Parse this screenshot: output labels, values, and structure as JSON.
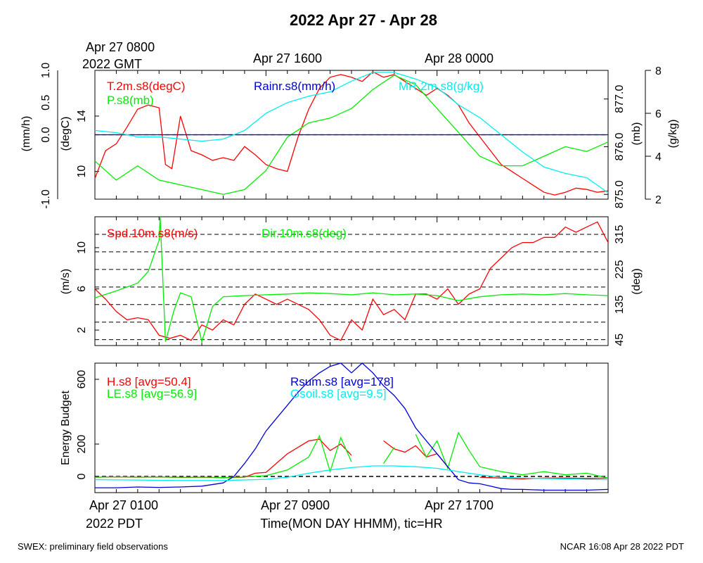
{
  "title": "2022 Apr 27 - Apr 28",
  "top_axis": {
    "gmt_first_line1": "Apr 27 0800",
    "gmt_first_line2": "2022 GMT",
    "gmt_labels": [
      "Apr 27 1600",
      "Apr 28 0000"
    ]
  },
  "bottom_axis": {
    "labels": [
      "Apr 27 0100",
      "Apr 27 0900",
      "Apr 27 1700"
    ],
    "year_label": "2022 PDT",
    "xlabel": "Time(MON DAY HHMM), tic=HR"
  },
  "footer": {
    "left": "SWEX: preliminary field observations",
    "right": "NCAR 16:08 Apr 28 2022 PDT"
  },
  "colors": {
    "red": "#ff0000",
    "green": "#00ee00",
    "blue": "#0000dd",
    "cyan": "#00eeee",
    "black": "#000000"
  },
  "chart_data": [
    {
      "type": "line",
      "panel": "meteorology",
      "x_range_hours": [
        0,
        24
      ],
      "axes": {
        "left_outer": {
          "label": "(mm/h)",
          "ticks": [
            "-1.0",
            "0.0",
            "0.5",
            "1.0"
          ],
          "range": [
            -1,
            1
          ]
        },
        "left_inner": {
          "label": "(degC)",
          "ticks": [
            "10",
            "14"
          ],
          "range": [
            8,
            17.3
          ]
        },
        "right_inner": {
          "label": "(mb)",
          "ticks": [
            "875.0",
            "876.0",
            "877.0"
          ],
          "range": [
            874.9,
            877.6
          ]
        },
        "right_outer": {
          "label": "(g/kg)",
          "ticks": [
            "2",
            "4",
            "6",
            "8"
          ],
          "range": [
            2,
            8
          ]
        }
      },
      "legend": [
        "T.2m.s8(degC)",
        "P.s8(mb)",
        "Rainr.s8(mm/h)",
        "MR.2m.s8(g/kg)"
      ],
      "series": [
        {
          "name": "T.2m.s8(degC)",
          "axis": "left_inner",
          "color": "red",
          "x": [
            0,
            0.5,
            1,
            1.5,
            2,
            2.5,
            3,
            3.3,
            3.6,
            4,
            4.5,
            5,
            5.5,
            6,
            6.5,
            7,
            7.5,
            8,
            8.5,
            9,
            9.5,
            10,
            10.5,
            11,
            11.5,
            12,
            12.5,
            13,
            13.5,
            14,
            14.5,
            15,
            15.5,
            16,
            16.5,
            17,
            17.5,
            18,
            18.5,
            19,
            19.5,
            20,
            20.5,
            21,
            21.5,
            22,
            22.5,
            23,
            23.5,
            24
          ],
          "y": [
            9.5,
            11.5,
            12,
            13.2,
            14.5,
            14.8,
            14.6,
            10.5,
            10.2,
            14,
            11.5,
            11.2,
            10.8,
            11,
            10.8,
            11.8,
            11.2,
            10.5,
            10.2,
            10,
            12.5,
            14.5,
            16,
            16.8,
            17,
            16.8,
            16.5,
            17.2,
            16.8,
            17,
            16.5,
            16,
            15.5,
            16,
            15.5,
            14.8,
            13.5,
            12.5,
            11.5,
            10.5,
            10,
            9.5,
            9,
            8.5,
            8.3,
            8.5,
            8.8,
            8.7,
            8.5,
            8.6
          ]
        },
        {
          "name": "P.s8(mb)",
          "axis": "right_inner",
          "color": "green",
          "x": [
            0,
            1,
            2,
            3,
            4,
            5,
            6,
            7,
            8,
            9,
            10,
            11,
            12,
            13,
            14,
            15,
            16,
            17,
            18,
            19,
            20,
            21,
            22,
            23,
            24
          ],
          "y": [
            875.7,
            875.3,
            875.6,
            875.3,
            875.2,
            875.1,
            875.0,
            875.1,
            875.5,
            876.2,
            876.5,
            876.6,
            876.8,
            877.2,
            877.5,
            877.3,
            876.8,
            876.3,
            875.8,
            875.6,
            875.6,
            875.8,
            876.0,
            875.9,
            876.1
          ]
        },
        {
          "name": "Rainr.s8(mm/h)",
          "axis": "left_outer",
          "color": "blue",
          "x": [
            0,
            24
          ],
          "y": [
            0,
            0
          ]
        },
        {
          "name": "MR.2m.s8(g/kg)",
          "axis": "right_outer",
          "color": "cyan",
          "x": [
            0,
            1,
            2,
            3,
            4,
            5,
            6,
            7,
            8,
            9,
            10,
            11,
            12,
            13,
            14,
            15,
            16,
            16.5,
            17,
            18,
            19,
            20,
            21,
            22,
            23,
            24
          ],
          "y": [
            5.2,
            5.1,
            4.9,
            4.9,
            4.8,
            4.7,
            4.8,
            5.2,
            6.0,
            6.5,
            6.8,
            7.0,
            7.5,
            7.9,
            7.9,
            7.6,
            7.2,
            6.8,
            6.4,
            5.8,
            5.0,
            4.2,
            3.5,
            3.2,
            3.0,
            2.3
          ]
        }
      ]
    },
    {
      "type": "line",
      "panel": "wind",
      "x_range_hours": [
        0,
        24
      ],
      "axes": {
        "left": {
          "label": "(m/s)",
          "ticks": [
            "2",
            "6",
            "10"
          ],
          "range": [
            0.5,
            13
          ]
        },
        "right": {
          "label": "(deg)",
          "ticks": [
            "45",
            "135",
            "225",
            "315"
          ],
          "range": [
            30,
            360
          ]
        }
      },
      "dir_reference_lines": [
        45,
        90,
        135,
        180,
        225,
        270,
        315,
        360
      ],
      "legend": [
        "Spd.10m.s8(m/s)",
        "Dir.10m.s8(deg)"
      ],
      "series": [
        {
          "name": "Spd.10m.s8(m/s)",
          "axis": "left",
          "color": "red",
          "x": [
            0,
            0.5,
            1,
            1.5,
            2,
            2.5,
            3,
            3.5,
            4,
            4.5,
            5,
            5.5,
            6,
            6.5,
            7,
            7.5,
            8,
            8.5,
            9,
            9.5,
            10,
            10.5,
            11,
            11.5,
            12,
            12.5,
            13,
            13.5,
            14,
            14.5,
            15,
            15.5,
            16,
            16.5,
            17,
            17.5,
            18,
            18.5,
            19,
            19.5,
            20,
            20.5,
            21,
            21.5,
            22,
            22.5,
            23,
            23.5,
            24
          ],
          "y": [
            6,
            5,
            3.8,
            3,
            3.2,
            3,
            1.5,
            1.2,
            1.5,
            1,
            2.5,
            2,
            3,
            2.5,
            4.5,
            5.5,
            5,
            4.5,
            5,
            4.5,
            4,
            3,
            1.5,
            1,
            3,
            2,
            5,
            3.5,
            4,
            3,
            5.5,
            5.5,
            5,
            6,
            4.5,
            5.5,
            6,
            8,
            9,
            10,
            10.5,
            10.5,
            11,
            11,
            12,
            11.5,
            12,
            12.5,
            10.5
          ]
        },
        {
          "name": "Dir.10m.s8(deg)",
          "axis": "right",
          "color": "green",
          "x": [
            0,
            1,
            2,
            2.5,
            3,
            3.05,
            3.3,
            3.7,
            4,
            4.5,
            5,
            5.5,
            6,
            7,
            8,
            9,
            10,
            11,
            12,
            13,
            14,
            15,
            16,
            17,
            18,
            19,
            20,
            21,
            22,
            23,
            24
          ],
          "y": [
            152,
            170,
            190,
            220,
            300,
            360,
            40,
            120,
            165,
            155,
            40,
            130,
            155,
            158,
            160,
            162,
            165,
            163,
            160,
            165,
            160,
            162,
            158,
            145,
            155,
            160,
            162,
            160,
            163,
            160,
            158
          ]
        }
      ]
    },
    {
      "type": "line",
      "panel": "energy",
      "x_range_hours": [
        0,
        24
      ],
      "ylabel": "Energy Budget",
      "axes": {
        "left": {
          "ticks": [
            "0",
            "200",
            "600"
          ],
          "range": [
            -100,
            700
          ]
        }
      },
      "legend": [
        "H.s8 [avg=50.4]",
        "LE.s8 [avg=56.9]",
        "Rsum.s8 [avg=178]",
        "Gsoil.s8 [avg=9.5]"
      ],
      "series": [
        {
          "name": "H.s8 [avg=50.4]",
          "color": "red",
          "x": [
            0,
            1,
            2,
            3,
            4,
            5,
            6,
            7,
            7.5,
            8,
            9,
            10,
            10.5,
            11,
            11.5,
            12,
            12.5,
            13,
            13.5,
            14,
            14.5,
            15,
            15.5,
            16,
            16.5,
            17,
            18,
            19,
            20,
            21,
            22,
            23,
            24
          ],
          "y": [
            -5,
            -3,
            -5,
            -4,
            -6,
            -5,
            -8,
            -5,
            20,
            25,
            140,
            220,
            230,
            160,
            200,
            130,
            null,
            null,
            220,
            170,
            150,
            190,
            120,
            140,
            60,
            null,
            -5,
            -10,
            -15,
            -10,
            -10,
            -12,
            -10
          ]
        },
        {
          "name": "LE.s8 [avg=56.9]",
          "color": "green",
          "x": [
            0,
            1,
            2,
            3,
            4,
            5,
            6,
            7,
            8,
            9,
            10,
            10.5,
            11,
            11.5,
            12,
            12.5,
            13,
            13.5,
            14,
            14.5,
            15,
            15.5,
            16,
            16.5,
            17,
            17.5,
            18,
            19,
            20,
            21,
            22,
            23,
            24
          ],
          "y": [
            -5,
            -2,
            -4,
            -3,
            -5,
            -4,
            -6,
            -3,
            5,
            40,
            120,
            250,
            30,
            240,
            90,
            null,
            null,
            80,
            180,
            null,
            260,
            120,
            220,
            50,
            270,
            160,
            60,
            30,
            10,
            30,
            10,
            20,
            -10
          ]
        },
        {
          "name": "Rsum.s8 [avg=178]",
          "color": "blue",
          "x": [
            0,
            1,
            2,
            3,
            4,
            5,
            6,
            6.5,
            7,
            7.5,
            8,
            8.5,
            9,
            9.5,
            10,
            10.5,
            11,
            11.5,
            12,
            12.5,
            13,
            13.5,
            14,
            14.5,
            15,
            15.5,
            16,
            16.5,
            17,
            17.5,
            18,
            18.5,
            19,
            19.5,
            20,
            21,
            22,
            23,
            24
          ],
          "y": [
            -70,
            -70,
            -65,
            -68,
            -65,
            -60,
            -40,
            0,
            80,
            170,
            280,
            360,
            440,
            520,
            590,
            640,
            680,
            700,
            640,
            700,
            640,
            560,
            500,
            420,
            300,
            220,
            140,
            60,
            -20,
            -40,
            -45,
            -60,
            -75,
            -80,
            -80,
            -85,
            -85,
            -85,
            -80
          ]
        },
        {
          "name": "Gsoil.s8 [avg=9.5]",
          "color": "cyan",
          "x": [
            0,
            2,
            4,
            6,
            8,
            9,
            10,
            11,
            12,
            13,
            14,
            15,
            16,
            17,
            18,
            19,
            20,
            22,
            24
          ],
          "y": [
            -20,
            -22,
            -25,
            -25,
            -18,
            -5,
            20,
            40,
            55,
            65,
            65,
            60,
            50,
            30,
            10,
            -5,
            -10,
            -15,
            -20
          ]
        }
      ]
    }
  ]
}
